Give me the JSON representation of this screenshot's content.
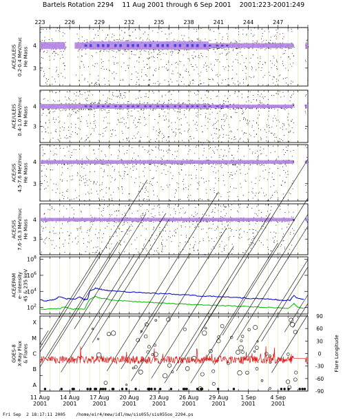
{
  "title": "Bartels Rotation 2294    11 Aug 2001 through 6 Sep 2001    2001:223-2001:249",
  "top_axis_doy_labels": [
    "223",
    "226",
    "229",
    "232",
    "235",
    "238",
    "241",
    "244",
    "247"
  ],
  "footer": "Fri Sep  2 18:17:11 2005    /home/eir4/mew/idl/mw/sis055/sis055oo_2294.ps",
  "colors": {
    "density_points": "#000000",
    "density_core": "#b98be8",
    "density_peak": "#3a39d8",
    "grid_day": "#e6e6a0",
    "epam_high": "#1010d0",
    "epam_low": "#10c010",
    "xray": "#e01010",
    "flare_tracks": "#000000"
  },
  "chart_data": [
    {
      "type": "scatter",
      "panel": "ACE/ULEIS 0.2-0.4 MeV/nuc",
      "ylabel_lines": [
        "ACE/ULEIS",
        "0.2-0.4 MeV/nuc",
        "He Mass"
      ],
      "y_ticks": [
        "4",
        "3"
      ],
      "ylim": [
        2.2,
        4.8
      ],
      "x_range_doy": [
        223,
        250
      ],
      "band_center": 4.0,
      "data_gaps_doy": [
        [
          225.6,
          226.6
        ],
        [
          248.6,
          249.7
        ]
      ]
    },
    {
      "type": "scatter",
      "panel": "ACE/ULEIS 0.4-1.0 MeV/nuc",
      "ylabel_lines": [
        "ACE/ULEIS",
        "0.4-1.0 MeV/nuc",
        "He Mass"
      ],
      "y_ticks": [
        "4",
        "3"
      ],
      "ylim": [
        2.2,
        4.8
      ],
      "x_range_doy": [
        223,
        250
      ],
      "band_center": 4.0,
      "data_gaps_doy": [
        [
          248.6,
          249.7
        ]
      ]
    },
    {
      "type": "scatter",
      "panel": "ACE/SIS 4.5-7.6 MeV/nuc",
      "ylabel_lines": [
        "ACE/SIS",
        "4.5-7.6 MeV/nuc",
        "He Mass"
      ],
      "y_ticks": [
        "4",
        "3"
      ],
      "ylim": [
        2.2,
        4.8
      ],
      "x_range_doy": [
        223,
        250
      ],
      "band_center": 4.0,
      "data_gaps_doy": [
        [
          248.6,
          249.7
        ]
      ]
    },
    {
      "type": "scatter",
      "panel": "ACE/SIS 7.6-16.3 MeV/nuc",
      "ylabel_lines": [
        "ACE/SIS",
        "7.6-16.3 MeV/nuc",
        "He Mass"
      ],
      "y_ticks": [
        "4",
        "3"
      ],
      "ylim": [
        2.2,
        4.8
      ],
      "x_range_doy": [
        223,
        250
      ],
      "band_center": 4.0,
      "data_gaps_doy": [
        [
          248.6,
          249.7
        ]
      ]
    },
    {
      "type": "line",
      "panel": "ACE/EPAM",
      "ylabel_lines": [
        "ACE/EPAM",
        "e- intensity",
        "45 & 235 keV"
      ],
      "y_ticks": [
        "10^8",
        "10^6",
        "10^4",
        "10^2"
      ],
      "ylog": true,
      "ylim_log10": [
        1.2,
        8.3
      ],
      "series": [
        {
          "name": "45 keV",
          "x_doy": [
            223.0,
            223.5,
            224.0,
            224.5,
            225.0,
            225.5,
            226.0,
            226.5,
            227.0,
            227.4,
            227.6,
            227.8,
            228.0,
            228.6,
            229.0,
            229.5,
            230.0,
            231.0,
            232.0,
            233.0,
            234.0,
            235.0,
            236.0,
            237.0,
            238.0,
            239.0,
            240.0,
            241.0,
            242.0,
            243.0,
            244.0,
            245.0,
            246.0,
            246.6,
            247.0,
            247.4,
            248.2,
            248.6,
            249.0,
            249.6
          ],
          "log10_values": [
            3.0,
            2.8,
            2.9,
            3.0,
            3.4,
            3.1,
            3.1,
            3.0,
            3.35,
            3.0,
            3.0,
            3.0,
            4.0,
            4.4,
            4.3,
            4.15,
            4.1,
            4.0,
            3.95,
            3.9,
            3.8,
            3.75,
            3.7,
            3.6,
            3.55,
            3.45,
            3.4,
            3.35,
            3.3,
            3.2,
            3.15,
            3.1,
            3.05,
            3.0,
            2.95,
            2.9,
            2.9,
            3.5,
            3.1,
            3.0
          ]
        },
        {
          "name": "235 keV",
          "x_doy": [
            223.0,
            224.0,
            225.0,
            225.5,
            226.0,
            226.5,
            227.0,
            227.5,
            228.0,
            228.6,
            229.0,
            230.0,
            231.0,
            232.0,
            233.0,
            234.0,
            235.0,
            236.0,
            237.0,
            238.0,
            239.0,
            240.0,
            241.0,
            242.0,
            243.0,
            244.0,
            245.0,
            246.0,
            247.0,
            248.0,
            248.6,
            249.0,
            249.6
          ],
          "log10_values": [
            1.8,
            1.8,
            1.9,
            2.1,
            1.9,
            1.8,
            1.8,
            1.8,
            3.0,
            3.4,
            3.2,
            3.0,
            2.85,
            2.8,
            2.7,
            2.65,
            2.55,
            2.5,
            2.45,
            2.4,
            2.35,
            2.3,
            2.25,
            2.2,
            2.15,
            2.1,
            2.05,
            2.0,
            1.95,
            1.9,
            2.5,
            2.0,
            1.95
          ]
        }
      ]
    },
    {
      "type": "line",
      "panel": "GOES-8 X-Ray Flux",
      "ylabel_lines": [
        "GOES-8",
        "X-Ray Flux",
        "& Flares"
      ],
      "y_ticks_left": [
        "X",
        "M",
        "C",
        "B",
        "A"
      ],
      "y2label": "Flare Longitude",
      "y2_ticks": [
        "90",
        "60",
        "30",
        "0",
        "-30",
        "-60",
        "-90"
      ],
      "ylim_log_class": [
        0.0,
        4.8
      ],
      "y2lim": [
        -90,
        90
      ],
      "xray_level_class": 2.0
    }
  ],
  "x_axis": {
    "labels": [
      {
        "date": "11 Aug",
        "year": "2001"
      },
      {
        "date": "14 Aug",
        "year": "2001"
      },
      {
        "date": "17 Aug",
        "year": "2001"
      },
      {
        "date": "20 Aug",
        "year": "2001"
      },
      {
        "date": "23 Aug",
        "year": "2001"
      },
      {
        "date": "26 Aug",
        "year": "2001"
      },
      {
        "date": "29 Aug",
        "year": "2001"
      },
      {
        "date": "1 Sep",
        "year": "2001"
      },
      {
        "date": "4 Sep",
        "year": "2001"
      }
    ],
    "label_doy": [
      223,
      226,
      229,
      232,
      235,
      238,
      241,
      244,
      247
    ],
    "range_doy": [
      223,
      250
    ]
  }
}
